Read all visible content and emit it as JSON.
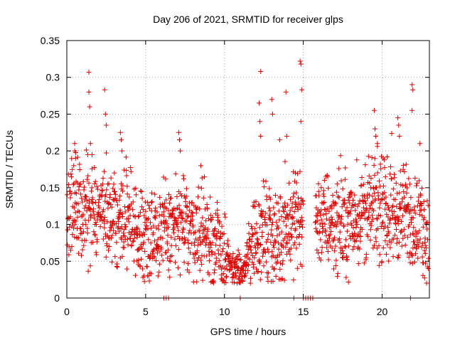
{
  "chart_data": {
    "type": "scatter",
    "title": "Day 206 of 2021, SRMTID for receiver glps",
    "xlabel": "GPS time / hours",
    "ylabel": "SRMTID / TECUs",
    "xlim": [
      0,
      23
    ],
    "ylim": [
      0,
      0.35
    ],
    "xticks": [
      "0",
      "5",
      "10",
      "15",
      "20"
    ],
    "yticks": [
      "0",
      "0.05",
      "0.1",
      "0.15",
      "0.2",
      "0.25",
      "0.3",
      "0.35"
    ],
    "grid": true,
    "marker": "+",
    "colors": {
      "points": "#dd0000",
      "grid": "#a0a0a0",
      "axes": "#000000"
    },
    "series": [
      {
        "name": "SRMTID",
        "description": "dense scatter of '+' markers from 0 to ~23 h; values mostly 0.05-0.17 TECU with a dip to ~0.02-0.05 near 10-11.5 h and a data gap near 15-15.8 h",
        "baseline_profile": [
          [
            0.0,
            0.115
          ],
          [
            1.0,
            0.12
          ],
          [
            2.0,
            0.115
          ],
          [
            3.0,
            0.11
          ],
          [
            4.0,
            0.105
          ],
          [
            4.5,
            0.08
          ],
          [
            5.5,
            0.095
          ],
          [
            6.3,
            0.09
          ],
          [
            7.0,
            0.1
          ],
          [
            8.0,
            0.095
          ],
          [
            9.0,
            0.08
          ],
          [
            9.8,
            0.065
          ],
          [
            10.5,
            0.04
          ],
          [
            11.2,
            0.035
          ],
          [
            11.8,
            0.08
          ],
          [
            12.5,
            0.09
          ],
          [
            13.2,
            0.07
          ],
          [
            14.0,
            0.1
          ],
          [
            14.9,
            0.11
          ],
          [
            15.8,
            0.11
          ],
          [
            16.5,
            0.105
          ],
          [
            17.5,
            0.1
          ],
          [
            18.5,
            0.11
          ],
          [
            19.5,
            0.12
          ],
          [
            20.5,
            0.115
          ],
          [
            21.5,
            0.115
          ],
          [
            22.3,
            0.1
          ],
          [
            22.9,
            0.085
          ]
        ],
        "spikes": [
          [
            0.5,
            0.21
          ],
          [
            0.5,
            0.2
          ],
          [
            0.55,
            0.19
          ],
          [
            1.4,
            0.307
          ],
          [
            1.4,
            0.28
          ],
          [
            1.45,
            0.26
          ],
          [
            1.5,
            0.21
          ],
          [
            1.6,
            0.195
          ],
          [
            2.4,
            0.283
          ],
          [
            2.45,
            0.25
          ],
          [
            2.5,
            0.235
          ],
          [
            3.4,
            0.225
          ],
          [
            3.45,
            0.215
          ],
          [
            3.5,
            0.2
          ],
          [
            7.1,
            0.225
          ],
          [
            7.15,
            0.215
          ],
          [
            7.2,
            0.2
          ],
          [
            8.5,
            0.18
          ],
          [
            12.3,
            0.308
          ],
          [
            12.2,
            0.265
          ],
          [
            12.25,
            0.24
          ],
          [
            12.3,
            0.22
          ],
          [
            13.0,
            0.27
          ],
          [
            13.05,
            0.25
          ],
          [
            13.5,
            0.215
          ],
          [
            13.9,
            0.28
          ],
          [
            13.95,
            0.22
          ],
          [
            14.8,
            0.322
          ],
          [
            14.85,
            0.318
          ],
          [
            14.9,
            0.283
          ],
          [
            14.85,
            0.24
          ],
          [
            14.5,
            0.17
          ],
          [
            19.5,
            0.255
          ],
          [
            19.55,
            0.23
          ],
          [
            19.6,
            0.22
          ],
          [
            19.7,
            0.21
          ],
          [
            21.0,
            0.245
          ],
          [
            21.05,
            0.235
          ],
          [
            21.1,
            0.22
          ],
          [
            21.9,
            0.29
          ],
          [
            21.95,
            0.283
          ],
          [
            21.9,
            0.255
          ],
          [
            22.4,
            0.21
          ]
        ],
        "zero_markers": [
          [
            6.15,
            0.0
          ],
          [
            6.3,
            0.0
          ],
          [
            6.45,
            0.0
          ],
          [
            11.0,
            0.0
          ],
          [
            14.4,
            0.0
          ],
          [
            15.0,
            0.0
          ],
          [
            15.15,
            0.0
          ],
          [
            15.3,
            0.0
          ],
          [
            15.45,
            0.0
          ],
          [
            15.6,
            0.0
          ],
          [
            21.8,
            0.0
          ]
        ]
      }
    ]
  }
}
